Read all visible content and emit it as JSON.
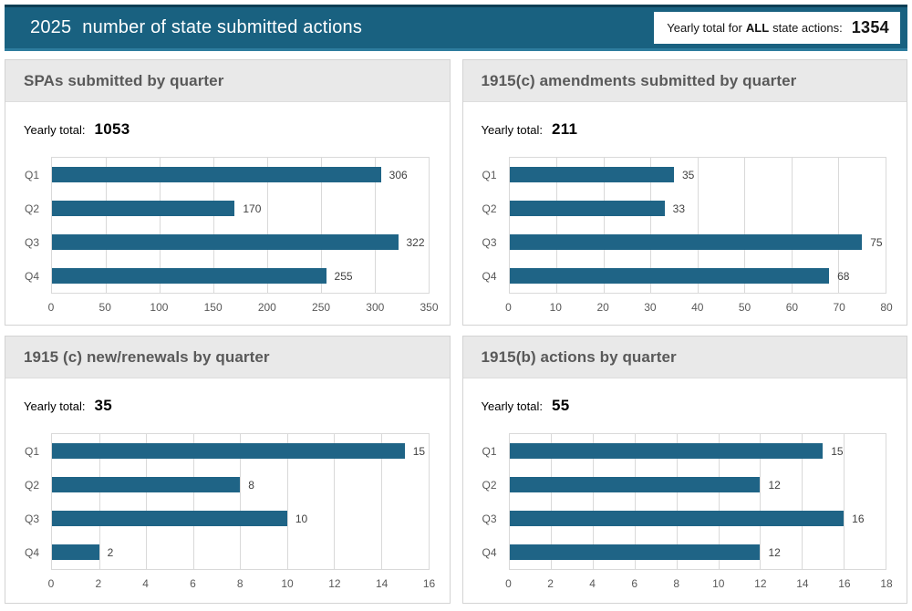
{
  "header": {
    "year": "2025",
    "title": "number of state submitted actions",
    "total_box": {
      "prefix": "Yearly total for",
      "bold_word": "ALL",
      "suffix": "state actions:",
      "value": "1354"
    }
  },
  "panels": [
    {
      "title": "SPAs submitted by quarter",
      "yearly_total_label": "Yearly total:",
      "yearly_total": "1053"
    },
    {
      "title": "1915(c) amendments submitted by quarter",
      "yearly_total_label": "Yearly total:",
      "yearly_total": "211"
    },
    {
      "title": "1915 (c) new/renewals by quarter",
      "yearly_total_label": "Yearly total:",
      "yearly_total": "35"
    },
    {
      "title": "1915(b) actions by quarter",
      "yearly_total_label": "Yearly total:",
      "yearly_total": "55"
    }
  ],
  "chart_data": [
    {
      "type": "bar",
      "orientation": "horizontal",
      "title": "SPAs submitted by quarter",
      "categories": [
        "Q1",
        "Q2",
        "Q3",
        "Q4"
      ],
      "values": [
        306,
        170,
        322,
        255
      ],
      "yearly_total": 1053,
      "xlabel": "",
      "ylabel": "",
      "xlim": [
        0,
        350
      ],
      "xticks": [
        0,
        50,
        100,
        150,
        200,
        250,
        300,
        350
      ],
      "grid": true,
      "value_labels": true,
      "bar_color": "#1f6486",
      "legend": false
    },
    {
      "type": "bar",
      "orientation": "horizontal",
      "title": "1915(c) amendments submitted by quarter",
      "categories": [
        "Q1",
        "Q2",
        "Q3",
        "Q4"
      ],
      "values": [
        35,
        33,
        75,
        68
      ],
      "yearly_total": 211,
      "xlabel": "",
      "ylabel": "",
      "xlim": [
        0,
        80
      ],
      "xticks": [
        0,
        10,
        20,
        30,
        40,
        50,
        60,
        70,
        80
      ],
      "grid": true,
      "value_labels": true,
      "bar_color": "#1f6486",
      "legend": false
    },
    {
      "type": "bar",
      "orientation": "horizontal",
      "title": "1915 (c) new/renewals by quarter",
      "categories": [
        "Q1",
        "Q2",
        "Q3",
        "Q4"
      ],
      "values": [
        15,
        8,
        10,
        2
      ],
      "yearly_total": 35,
      "xlabel": "",
      "ylabel": "",
      "xlim": [
        0,
        16
      ],
      "xticks": [
        0,
        2,
        4,
        6,
        8,
        10,
        12,
        14,
        16
      ],
      "grid": true,
      "value_labels": true,
      "bar_color": "#1f6486",
      "legend": false
    },
    {
      "type": "bar",
      "orientation": "horizontal",
      "title": "1915(b) actions by quarter",
      "categories": [
        "Q1",
        "Q2",
        "Q3",
        "Q4"
      ],
      "values": [
        15,
        12,
        16,
        12
      ],
      "yearly_total": 55,
      "xlabel": "",
      "ylabel": "",
      "xlim": [
        0,
        18
      ],
      "xticks": [
        0,
        2,
        4,
        6,
        8,
        10,
        12,
        14,
        16,
        18
      ],
      "grid": true,
      "value_labels": true,
      "bar_color": "#1f6486",
      "legend": false
    }
  ],
  "colors": {
    "banner_bg": "#196180",
    "banner_top_border": "#0c3e54",
    "banner_bottom_border": "#2e7c9e",
    "bar": "#1f6486",
    "panel_header_bg": "#e9e9e9",
    "panel_header_text": "#595959",
    "panel_border": "#d3d3d3",
    "grid_line": "#d9d9d9"
  }
}
